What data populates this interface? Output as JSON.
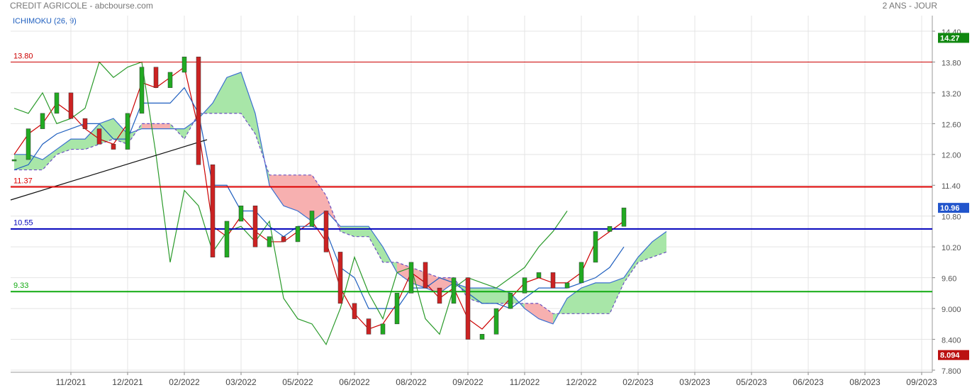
{
  "chart_data": {
    "type": "ichimoku",
    "title": "CREDIT AGRICOLE - abcbourse.com",
    "subtitle": "2 ANS - JOUR",
    "indicator_label": "ICHIMOKU (26, 9)",
    "categories": [
      null,
      null,
      null,
      null,
      "11/2021",
      null,
      null,
      null,
      "12/2021",
      null,
      null,
      null,
      "02/2022",
      null,
      null,
      null,
      "03/2022",
      null,
      null,
      null,
      "05/2022",
      null,
      null,
      null,
      "06/2022",
      null,
      null,
      null,
      "08/2022",
      null,
      null,
      null,
      "09/2022",
      null,
      null,
      null,
      "11/2022",
      null,
      null,
      null,
      "12/2022",
      null,
      null,
      null,
      "02/2023",
      null,
      null,
      null,
      "03/2023",
      null,
      null,
      null,
      "05/2023",
      null,
      null,
      null,
      "06/2023",
      null,
      null,
      null,
      "08/2023",
      null,
      null,
      null,
      "09/2023",
      null
    ],
    "ylim": [
      7.8,
      14.4
    ],
    "yticks": [
      {
        "value": 14.4,
        "label": "14.40"
      },
      {
        "value": 13.8,
        "label": "13.80"
      },
      {
        "value": 13.2,
        "label": "13.20"
      },
      {
        "value": 12.6,
        "label": "12.60"
      },
      {
        "value": 12,
        "label": "12.00"
      },
      {
        "value": 11.4,
        "label": "11.40"
      },
      {
        "value": 10.8,
        "label": "10.80"
      },
      {
        "value": 10.2,
        "label": "10.20"
      },
      {
        "value": 9.6,
        "label": "9.60"
      },
      {
        "value": 9,
        "label": "9.000"
      },
      {
        "value": 8.4,
        "label": "8.400"
      },
      {
        "value": 7.8,
        "label": "7.800"
      }
    ],
    "grid": true,
    "price": {
      "up_color": "#22aa22",
      "down_color": "#cc2222",
      "values": [
        11.9,
        12.5,
        12.8,
        13.2,
        12.7,
        12.5,
        12.2,
        12.1,
        12.8,
        13.7,
        13.3,
        13.6,
        13.9,
        11.8,
        10.0,
        10.7,
        11.0,
        10.2,
        10.4,
        10.3,
        10.6,
        10.9,
        10.1,
        9.1,
        8.8,
        8.5,
        8.7,
        9.3,
        9.9,
        9.4,
        9.1,
        9.6,
        8.4,
        8.5,
        9.0,
        9.3,
        9.6,
        9.7,
        9.4,
        9.5,
        9.9,
        10.5,
        10.6,
        10.96,
        null,
        null,
        null,
        null,
        null,
        null,
        null,
        null,
        null,
        null,
        null,
        null,
        null,
        null,
        null,
        null,
        null,
        null,
        null,
        null,
        null,
        null
      ]
    },
    "series": [
      {
        "color": "#cc0000",
        "values": [
          12.0,
          12.4,
          12.6,
          13.0,
          12.8,
          12.5,
          12.3,
          12.2,
          12.6,
          13.4,
          13.3,
          13.5,
          13.7,
          12.5,
          10.6,
          10.4,
          10.8,
          10.5,
          10.3,
          10.3,
          10.5,
          10.7,
          10.3,
          9.4,
          8.9,
          8.6,
          8.7,
          9.1,
          9.7,
          9.5,
          9.2,
          9.4,
          8.8,
          8.6,
          8.9,
          9.2,
          9.5,
          9.6,
          9.5,
          9.5,
          9.7,
          10.3,
          10.5,
          10.7,
          null,
          null,
          null,
          null,
          null,
          null,
          null,
          null,
          null,
          null,
          null,
          null,
          null,
          null,
          null,
          null,
          null,
          null,
          null,
          null,
          null,
          null
        ]
      },
      {
        "color": "#1f5fbf",
        "values": [
          11.7,
          11.8,
          12.2,
          12.4,
          12.5,
          12.6,
          12.6,
          12.3,
          12.3,
          13.0,
          13.0,
          13.0,
          13.3,
          12.8,
          11.4,
          11.4,
          10.9,
          10.9,
          10.6,
          10.4,
          10.6,
          10.6,
          10.5,
          9.8,
          9.6,
          9.0,
          9.0,
          9.0,
          9.4,
          9.4,
          9.6,
          9.5,
          9.3,
          9.1,
          9.1,
          9.0,
          9.2,
          9.4,
          9.4,
          9.4,
          9.5,
          9.6,
          9.8,
          10.2,
          null,
          null,
          null,
          null,
          null,
          null,
          null,
          null,
          null,
          null,
          null,
          null,
          null,
          null,
          null,
          null,
          null,
          null,
          null,
          null,
          null,
          null
        ]
      },
      {
        "color": "#2a9a2a",
        "values": [
          12.9,
          12.8,
          13.2,
          12.6,
          12.7,
          12.9,
          13.8,
          13.5,
          13.7,
          13.8,
          12.0,
          9.9,
          11.3,
          11.0,
          10.1,
          10.5,
          10.6,
          10.3,
          10.7,
          9.2,
          8.8,
          8.7,
          8.3,
          9.0,
          10.0,
          9.3,
          8.8,
          9.7,
          9.8,
          8.8,
          8.5,
          9.4,
          9.6,
          9.5,
          9.4,
          9.6,
          9.8,
          10.2,
          10.5,
          10.9,
          null,
          null,
          null,
          null,
          null,
          null,
          null,
          null,
          null,
          null,
          null,
          null,
          null,
          null,
          null,
          null,
          null,
          null,
          null,
          null,
          null,
          null,
          null,
          null,
          null,
          null
        ]
      }
    ],
    "cloud": {
      "up_color": "#a8e6a8",
      "down_color": "#f7b0b0",
      "span_a": {
        "color": "#3b6fd0",
        "dashed": false,
        "values": [
          12.0,
          12.0,
          11.9,
          12.1,
          12.3,
          12.3,
          12.6,
          12.7,
          12.4,
          12.5,
          12.5,
          12.5,
          12.5,
          12.7,
          13.0,
          13.5,
          13.6,
          12.8,
          11.4,
          11.0,
          10.9,
          10.7,
          10.9,
          10.6,
          10.6,
          10.6,
          10.2,
          9.7,
          9.5,
          9.4,
          9.3,
          9.5,
          9.4,
          9.4,
          9.4,
          9.3,
          9.0,
          8.8,
          8.7,
          9.2,
          9.4,
          9.5,
          9.5,
          9.6,
          10.0,
          10.3,
          10.5,
          null,
          null,
          null,
          null,
          null,
          null,
          null,
          null,
          null,
          null,
          null,
          null,
          null,
          null,
          null,
          null,
          null,
          null,
          null
        ]
      },
      "span_b": {
        "color": "#6a4fc0",
        "dashed": true,
        "values": [
          11.7,
          11.7,
          11.7,
          12.0,
          12.1,
          12.1,
          12.2,
          12.3,
          12.2,
          12.6,
          12.6,
          12.6,
          12.3,
          12.8,
          12.8,
          12.8,
          12.8,
          12.4,
          11.6,
          11.6,
          11.6,
          11.6,
          11.2,
          10.5,
          10.4,
          10.4,
          9.9,
          9.9,
          9.8,
          9.7,
          9.6,
          9.6,
          9.2,
          9.1,
          9.1,
          9.1,
          9.1,
          9.1,
          8.9,
          8.9,
          8.9,
          8.9,
          8.9,
          9.5,
          9.9,
          10.0,
          10.1,
          null,
          null,
          null,
          null,
          null,
          null,
          null,
          null,
          null,
          null,
          null,
          null,
          null,
          null,
          null,
          null,
          null,
          null,
          null
        ]
      }
    },
    "levels": [
      {
        "value": 13.8,
        "label": "13.80",
        "color": "#cc0000",
        "width": 1
      },
      {
        "value": 11.37,
        "label": "11.37",
        "color": "#dd0000",
        "width": 2
      },
      {
        "value": 10.55,
        "label": "10.55",
        "color": "#0000bb",
        "width": 2
      },
      {
        "value": 9.33,
        "label": "9.33",
        "color": "#11aa11",
        "width": 2
      }
    ],
    "price_tags": [
      {
        "value": 14.27,
        "label": "14.27",
        "color": "#118811"
      },
      {
        "value": 10.96,
        "label": "10.96",
        "color": "#2255cc"
      },
      {
        "value": 8.094,
        "label": "8.094",
        "color": "#bb1111"
      }
    ]
  }
}
